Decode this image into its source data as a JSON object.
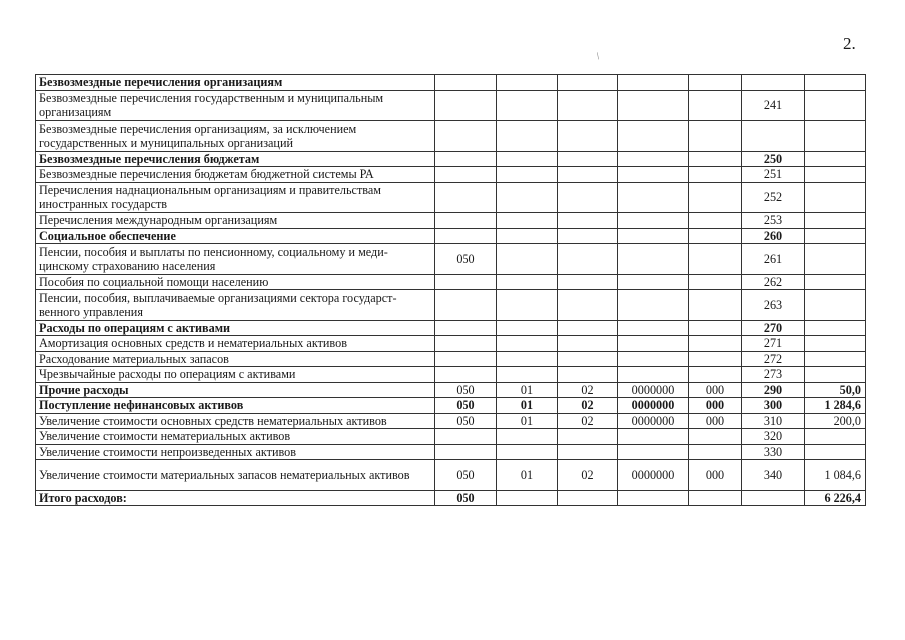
{
  "page_number": "2.",
  "mark": "/",
  "rows": [
    {
      "label": "Безвозмездные перечисления организациям",
      "bold": true,
      "cells": [
        "",
        "",
        "",
        "",
        "",
        "",
        ""
      ]
    },
    {
      "label": "Безвозмездные перечисления государственным и муниципальным организациям",
      "double": true,
      "cells": [
        "",
        "",
        "",
        "",
        "",
        "241",
        ""
      ]
    },
    {
      "label": "Безвозмездные перечисления организациям, за исключением государственных и муниципальных организаций",
      "double": true,
      "cells": [
        "",
        "",
        "",
        "",
        "",
        "",
        ""
      ]
    },
    {
      "label": "Безвозмездные перечисления  бюджетам",
      "bold": true,
      "cells": [
        "",
        "",
        "",
        "",
        "",
        "250",
        ""
      ]
    },
    {
      "label": "Безвозмездные перечисления бюджетам бюджетной системы РА",
      "cells": [
        "",
        "",
        "",
        "",
        "",
        "251",
        ""
      ]
    },
    {
      "label": "Перечисления наднациональным организациям и правительствам иностранных государств",
      "double": true,
      "cells": [
        "",
        "",
        "",
        "",
        "",
        "252",
        ""
      ]
    },
    {
      "label": "Перечисления международным организациям",
      "cells": [
        "",
        "",
        "",
        "",
        "",
        "253",
        ""
      ]
    },
    {
      "label": "Социальное обеспечение",
      "bold": true,
      "cells": [
        "",
        "",
        "",
        "",
        "",
        "260",
        ""
      ]
    },
    {
      "label": "Пенсии, пособия и выплаты по пенсионному, социальному и меди-цинскому страхованию населения",
      "double": true,
      "cells": [
        "050",
        "",
        "",
        "",
        "",
        "261",
        ""
      ]
    },
    {
      "label": "Пособия по социальной помощи населению",
      "cells": [
        "",
        "",
        "",
        "",
        "",
        "262",
        ""
      ]
    },
    {
      "label": "Пенсии, пособия, выплачиваемые организациями сектора государст-венного управления",
      "double": true,
      "cells": [
        "",
        "",
        "",
        "",
        "",
        "263",
        ""
      ]
    },
    {
      "label": "Расходы по операциям с активами",
      "bold": true,
      "cells": [
        "",
        "",
        "",
        "",
        "",
        "270",
        ""
      ]
    },
    {
      "label": "Амортизация основных средств и нематериальных активов",
      "cells": [
        "",
        "",
        "",
        "",
        "",
        "271",
        ""
      ]
    },
    {
      "label": "Расходование материальных запасов",
      "cells": [
        "",
        "",
        "",
        "",
        "",
        "272",
        ""
      ]
    },
    {
      "label": "Чрезвычайные расходы по операциям с активами",
      "cells": [
        "",
        "",
        "",
        "",
        "",
        "273",
        ""
      ]
    },
    {
      "label": "Прочие расходы",
      "bold_label": true,
      "cells": [
        "050",
        "01",
        "02",
        "0000000",
        "000",
        "290",
        "50,0"
      ],
      "bold_tail": true
    },
    {
      "label": "Поступление нефинансовых активов",
      "bold": true,
      "cells": [
        "050",
        "01",
        "02",
        "0000000",
        "000",
        "300",
        "1 284,6"
      ]
    },
    {
      "label": "Увеличение стоимости основных средств нематериальных активов",
      "cells": [
        "050",
        "01",
        "02",
        "0000000",
        "000",
        "310",
        "200,0"
      ]
    },
    {
      "label": "Увеличение стоимости  нематериальных активов",
      "cells": [
        "",
        "",
        "",
        "",
        "",
        "320",
        ""
      ]
    },
    {
      "label": "Увеличение стоимости непроизведенных активов",
      "cells": [
        "",
        "",
        "",
        "",
        "",
        "330",
        ""
      ]
    },
    {
      "label": "Увеличение стоимости материальных запасов нематериальных активов",
      "double": true,
      "cells": [
        "050",
        "01",
        "02",
        "0000000",
        "000",
        "340",
        "1 084,6"
      ]
    },
    {
      "label": "Итого расходов:",
      "bold": true,
      "cells": [
        "050",
        "",
        "",
        "",
        "",
        "",
        "6 226,4"
      ]
    }
  ]
}
